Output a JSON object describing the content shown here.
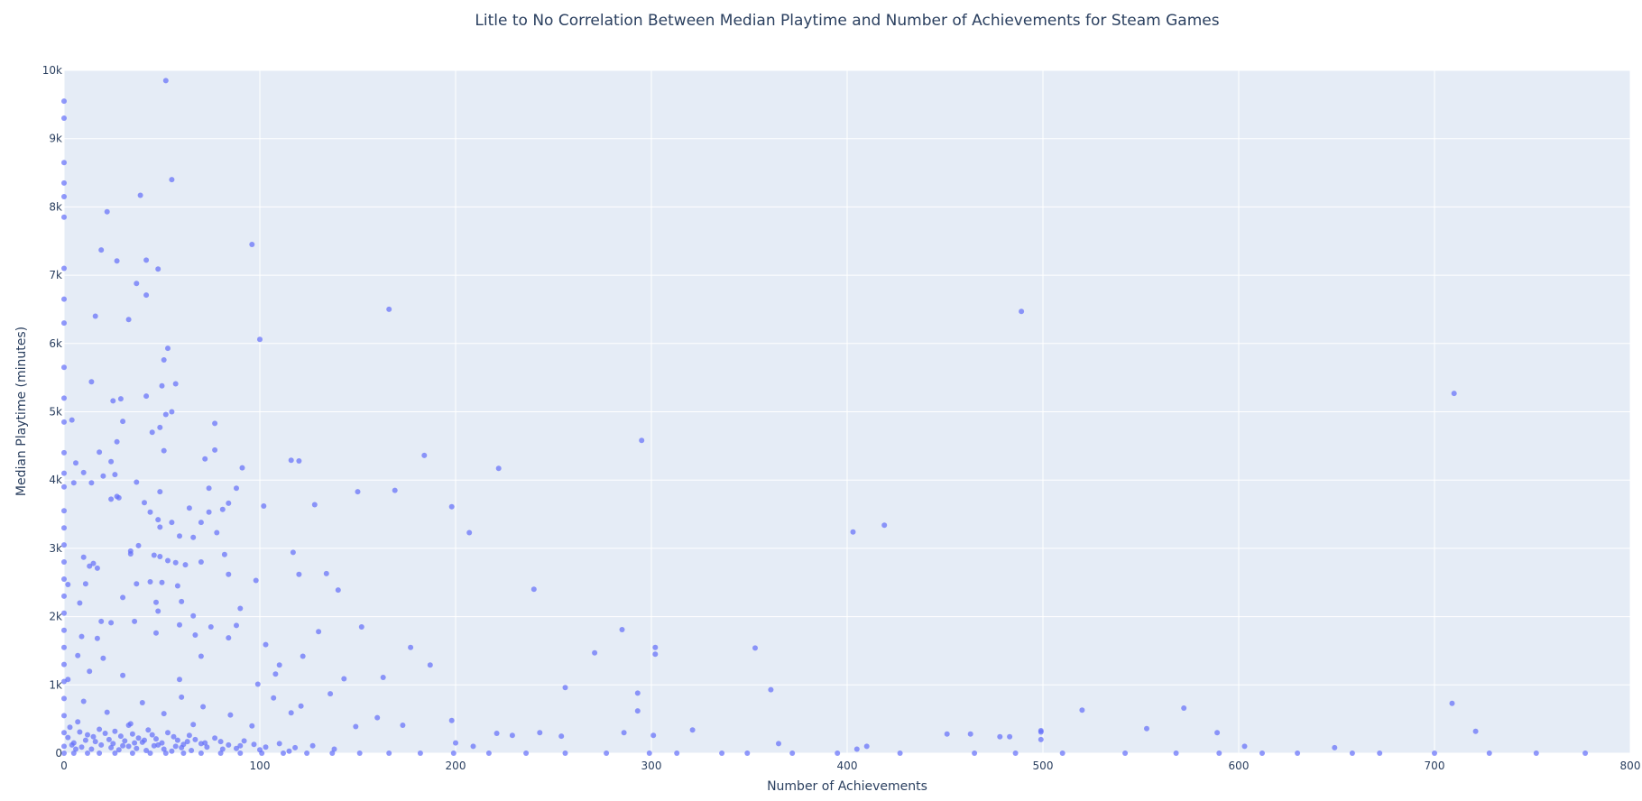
{
  "title": "Litle to No Correlation Between Median Playtime and Number of Achievements for Steam Games",
  "colors": {
    "plot_bg": "#e5ecf6",
    "grid": "#ffffff",
    "marker": "#636efa",
    "text": "#2a3f5f"
  },
  "chart_data": {
    "type": "scatter",
    "title": "Litle to No Correlation Between Median Playtime and Number of Achievements for Steam Games",
    "xlabel": "Number of Achievements",
    "ylabel": "Median Playtime (minutes)",
    "xlim": [
      0,
      800
    ],
    "ylim": [
      0,
      10000
    ],
    "x_ticks": [
      0,
      100,
      200,
      300,
      400,
      500,
      600,
      700,
      800
    ],
    "y_ticks": [
      0,
      1000,
      2000,
      3000,
      4000,
      5000,
      6000,
      7000,
      8000,
      9000,
      10000
    ],
    "x_tick_labels": [
      "0",
      "100",
      "200",
      "300",
      "400",
      "500",
      "600",
      "700",
      "800"
    ],
    "y_tick_labels": [
      "0",
      "1k",
      "2k",
      "3k",
      "4k",
      "5k",
      "6k",
      "7k",
      "8k",
      "9k",
      "10k"
    ],
    "grid": true,
    "legend": "none",
    "marker_color": "#636efa",
    "marker_opacity": 0.7,
    "points": [
      [
        52,
        9850
      ],
      [
        55,
        8400
      ],
      [
        39,
        8170
      ],
      [
        22,
        7930
      ],
      [
        27,
        7210
      ],
      [
        42,
        7220
      ],
      [
        19,
        7370
      ],
      [
        48,
        7090
      ],
      [
        37,
        6880
      ],
      [
        42,
        6710
      ],
      [
        16,
        6400
      ],
      [
        33,
        6350
      ],
      [
        96,
        7450
      ],
      [
        100,
        6060
      ],
      [
        166,
        6500
      ],
      [
        489,
        6470
      ],
      [
        710,
        5270
      ],
      [
        53,
        5930
      ],
      [
        51,
        5760
      ],
      [
        57,
        5410
      ],
      [
        50,
        5380
      ],
      [
        14,
        5440
      ],
      [
        25,
        5160
      ],
      [
        29,
        5190
      ],
      [
        42,
        5230
      ],
      [
        52,
        4960
      ],
      [
        55,
        5000
      ],
      [
        30,
        4860
      ],
      [
        77,
        4830
      ],
      [
        49,
        4770
      ],
      [
        45,
        4700
      ],
      [
        27,
        4560
      ],
      [
        4,
        4880
      ],
      [
        18,
        4410
      ],
      [
        51,
        4430
      ],
      [
        77,
        4440
      ],
      [
        72,
        4310
      ],
      [
        116,
        4290
      ],
      [
        120,
        4280
      ],
      [
        184,
        4360
      ],
      [
        295,
        4580
      ],
      [
        222,
        4170
      ],
      [
        6,
        4250
      ],
      [
        24,
        4270
      ],
      [
        91,
        4180
      ],
      [
        26,
        4080
      ],
      [
        20,
        4060
      ],
      [
        10,
        4110
      ],
      [
        5,
        3960
      ],
      [
        14,
        3960
      ],
      [
        37,
        3970
      ],
      [
        49,
        3830
      ],
      [
        74,
        3880
      ],
      [
        88,
        3880
      ],
      [
        150,
        3830
      ],
      [
        169,
        3850
      ],
      [
        24,
        3720
      ],
      [
        27,
        3760
      ],
      [
        28,
        3740
      ],
      [
        41,
        3670
      ],
      [
        84,
        3660
      ],
      [
        128,
        3640
      ],
      [
        64,
        3590
      ],
      [
        81,
        3570
      ],
      [
        102,
        3620
      ],
      [
        198,
        3610
      ],
      [
        44,
        3530
      ],
      [
        74,
        3530
      ],
      [
        48,
        3420
      ],
      [
        55,
        3380
      ],
      [
        70,
        3380
      ],
      [
        49,
        3310
      ],
      [
        59,
        3180
      ],
      [
        66,
        3160
      ],
      [
        78,
        3230
      ],
      [
        207,
        3230
      ],
      [
        403,
        3240
      ],
      [
        419,
        3340
      ],
      [
        38,
        3040
      ],
      [
        34,
        2960
      ],
      [
        34,
        2920
      ],
      [
        46,
        2900
      ],
      [
        49,
        2880
      ],
      [
        82,
        2910
      ],
      [
        117,
        2940
      ],
      [
        53,
        2820
      ],
      [
        10,
        2870
      ],
      [
        15,
        2780
      ],
      [
        13,
        2740
      ],
      [
        17,
        2710
      ],
      [
        57,
        2790
      ],
      [
        62,
        2760
      ],
      [
        70,
        2800
      ],
      [
        84,
        2620
      ],
      [
        120,
        2620
      ],
      [
        134,
        2630
      ],
      [
        2,
        2470
      ],
      [
        11,
        2480
      ],
      [
        37,
        2480
      ],
      [
        44,
        2510
      ],
      [
        50,
        2500
      ],
      [
        58,
        2450
      ],
      [
        98,
        2530
      ],
      [
        140,
        2390
      ],
      [
        240,
        2400
      ],
      [
        47,
        2210
      ],
      [
        60,
        2220
      ],
      [
        30,
        2280
      ],
      [
        8,
        2200
      ],
      [
        90,
        2120
      ],
      [
        48,
        2080
      ],
      [
        66,
        2010
      ],
      [
        19,
        1930
      ],
      [
        24,
        1910
      ],
      [
        36,
        1930
      ],
      [
        59,
        1880
      ],
      [
        75,
        1850
      ],
      [
        88,
        1870
      ],
      [
        130,
        1780
      ],
      [
        152,
        1850
      ],
      [
        285,
        1810
      ],
      [
        47,
        1760
      ],
      [
        9,
        1710
      ],
      [
        17,
        1680
      ],
      [
        67,
        1730
      ],
      [
        84,
        1690
      ],
      [
        103,
        1590
      ],
      [
        177,
        1550
      ],
      [
        353,
        1540
      ],
      [
        302,
        1550
      ],
      [
        302,
        1450
      ],
      [
        271,
        1470
      ],
      [
        7,
        1430
      ],
      [
        20,
        1390
      ],
      [
        70,
        1420
      ],
      [
        122,
        1420
      ],
      [
        110,
        1290
      ],
      [
        187,
        1290
      ],
      [
        13,
        1200
      ],
      [
        30,
        1140
      ],
      [
        108,
        1160
      ],
      [
        163,
        1110
      ],
      [
        143,
        1090
      ],
      [
        2,
        1080
      ],
      [
        59,
        1080
      ],
      [
        99,
        1010
      ],
      [
        256,
        960
      ],
      [
        361,
        930
      ],
      [
        293,
        880
      ],
      [
        136,
        870
      ],
      [
        60,
        820
      ],
      [
        107,
        810
      ],
      [
        10,
        760
      ],
      [
        40,
        740
      ],
      [
        71,
        680
      ],
      [
        121,
        690
      ],
      [
        520,
        630
      ],
      [
        572,
        660
      ],
      [
        709,
        730
      ],
      [
        293,
        620
      ],
      [
        22,
        600
      ],
      [
        51,
        580
      ],
      [
        85,
        560
      ],
      [
        116,
        590
      ],
      [
        160,
        520
      ],
      [
        198,
        480
      ],
      [
        7,
        460
      ],
      [
        34,
        430
      ],
      [
        66,
        420
      ],
      [
        96,
        400
      ],
      [
        149,
        390
      ],
      [
        173,
        410
      ],
      [
        553,
        360
      ],
      [
        321,
        340
      ],
      [
        721,
        320
      ],
      [
        589,
        300
      ],
      [
        499,
        330
      ],
      [
        499,
        310
      ],
      [
        451,
        280
      ],
      [
        463,
        280
      ],
      [
        478,
        240
      ],
      [
        483,
        240
      ],
      [
        499,
        200
      ],
      [
        301,
        260
      ],
      [
        221,
        290
      ],
      [
        229,
        260
      ],
      [
        286,
        300
      ],
      [
        243,
        300
      ],
      [
        254,
        250
      ],
      [
        365,
        140
      ],
      [
        410,
        100
      ],
      [
        405,
        60
      ],
      [
        603,
        100
      ],
      [
        649,
        80
      ],
      [
        200,
        150
      ],
      [
        209,
        100
      ],
      [
        3,
        380
      ],
      [
        8,
        310
      ],
      [
        12,
        270
      ],
      [
        15,
        240
      ],
      [
        18,
        350
      ],
      [
        21,
        290
      ],
      [
        23,
        200
      ],
      [
        26,
        320
      ],
      [
        29,
        250
      ],
      [
        31,
        180
      ],
      [
        33,
        410
      ],
      [
        35,
        280
      ],
      [
        38,
        220
      ],
      [
        40,
        160
      ],
      [
        43,
        340
      ],
      [
        45,
        270
      ],
      [
        47,
        210
      ],
      [
        50,
        150
      ],
      [
        53,
        300
      ],
      [
        56,
        240
      ],
      [
        58,
        190
      ],
      [
        61,
        130
      ],
      [
        64,
        260
      ],
      [
        67,
        200
      ],
      [
        70,
        140
      ],
      [
        73,
        90
      ],
      [
        77,
        220
      ],
      [
        80,
        170
      ],
      [
        84,
        120
      ],
      [
        88,
        70
      ],
      [
        92,
        180
      ],
      [
        97,
        130
      ],
      [
        103,
        90
      ],
      [
        110,
        140
      ],
      [
        118,
        80
      ],
      [
        127,
        110
      ],
      [
        138,
        60
      ],
      [
        5,
        150
      ],
      [
        9,
        90
      ],
      [
        14,
        60
      ],
      [
        19,
        120
      ],
      [
        24,
        80
      ],
      [
        28,
        50
      ],
      [
        33,
        100
      ],
      [
        37,
        70
      ],
      [
        42,
        40
      ],
      [
        46,
        110
      ],
      [
        51,
        60
      ],
      [
        55,
        30
      ],
      [
        60,
        80
      ],
      [
        65,
        40
      ],
      [
        2,
        230
      ],
      [
        4,
        120
      ],
      [
        6,
        60
      ],
      [
        11,
        190
      ],
      [
        16,
        170
      ],
      [
        25,
        140
      ],
      [
        30,
        110
      ],
      [
        36,
        150
      ],
      [
        41,
        190
      ],
      [
        48,
        120
      ],
      [
        57,
        100
      ],
      [
        63,
        170
      ],
      [
        72,
        150
      ],
      [
        81,
        60
      ],
      [
        90,
        110
      ],
      [
        100,
        50
      ],
      [
        115,
        30
      ],
      [
        0,
        9550
      ],
      [
        0,
        9300
      ],
      [
        0,
        8650
      ],
      [
        0,
        8350
      ],
      [
        0,
        8150
      ],
      [
        0,
        7850
      ],
      [
        0,
        7100
      ],
      [
        0,
        6650
      ],
      [
        0,
        6300
      ],
      [
        0,
        5650
      ],
      [
        0,
        5200
      ],
      [
        0,
        4850
      ],
      [
        0,
        4400
      ],
      [
        0,
        4100
      ],
      [
        0,
        3900
      ],
      [
        0,
        3550
      ],
      [
        0,
        3300
      ],
      [
        0,
        3050
      ],
      [
        0,
        2800
      ],
      [
        0,
        2550
      ],
      [
        0,
        2300
      ],
      [
        0,
        2050
      ],
      [
        0,
        1800
      ],
      [
        0,
        1550
      ],
      [
        0,
        1300
      ],
      [
        0,
        1050
      ],
      [
        0,
        800
      ],
      [
        0,
        550
      ],
      [
        0,
        300
      ],
      [
        0,
        100
      ],
      [
        0,
        0
      ],
      [
        5,
        0
      ],
      [
        12,
        0
      ],
      [
        18,
        0
      ],
      [
        26,
        0
      ],
      [
        35,
        0
      ],
      [
        44,
        0
      ],
      [
        52,
        0
      ],
      [
        61,
        0
      ],
      [
        70,
        0
      ],
      [
        80,
        0
      ],
      [
        90,
        0
      ],
      [
        101,
        0
      ],
      [
        112,
        0
      ],
      [
        124,
        0
      ],
      [
        137,
        0
      ],
      [
        151,
        0
      ],
      [
        166,
        0
      ],
      [
        182,
        0
      ],
      [
        199,
        0
      ],
      [
        217,
        0
      ],
      [
        236,
        0
      ],
      [
        256,
        0
      ],
      [
        277,
        0
      ],
      [
        299,
        0
      ],
      [
        313,
        0
      ],
      [
        336,
        0
      ],
      [
        349,
        0
      ],
      [
        372,
        0
      ],
      [
        395,
        0
      ],
      [
        427,
        0
      ],
      [
        465,
        0
      ],
      [
        486,
        0
      ],
      [
        510,
        0
      ],
      [
        542,
        0
      ],
      [
        568,
        0
      ],
      [
        590,
        0
      ],
      [
        612,
        0
      ],
      [
        630,
        0
      ],
      [
        658,
        0
      ],
      [
        672,
        0
      ],
      [
        700,
        0
      ],
      [
        728,
        0
      ],
      [
        752,
        0
      ],
      [
        777,
        0
      ]
    ]
  }
}
